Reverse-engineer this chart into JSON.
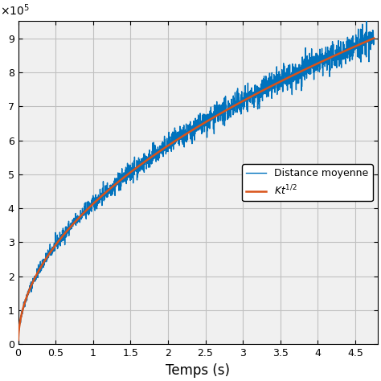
{
  "title": "",
  "xlabel": "Temps (s)",
  "ylabel": "",
  "yexp": 5,
  "x_min": 0,
  "x_max": 4.8,
  "y_min": 0,
  "y_max": 9.5,
  "K": 4.13,
  "noise_scale": 0.08,
  "blue_color": "#0072BD",
  "orange_color": "#D95319",
  "blue_linewidth": 1.0,
  "orange_linewidth": 1.8,
  "legend_labels": [
    "Distance moyenne",
    "Kt^{1/2}"
  ],
  "legend_loc": "center right",
  "grid_color": "#c0c0c0",
  "bg_color": "#f0f0f0",
  "n_points": 2000,
  "t_start": 0.0,
  "t_end": 4.75,
  "xticks": [
    0,
    0.5,
    1.0,
    1.5,
    2.0,
    2.5,
    3.0,
    3.5,
    4.0,
    4.5
  ],
  "yticks": [
    0,
    1,
    2,
    3,
    4,
    5,
    6,
    7,
    8,
    9
  ]
}
